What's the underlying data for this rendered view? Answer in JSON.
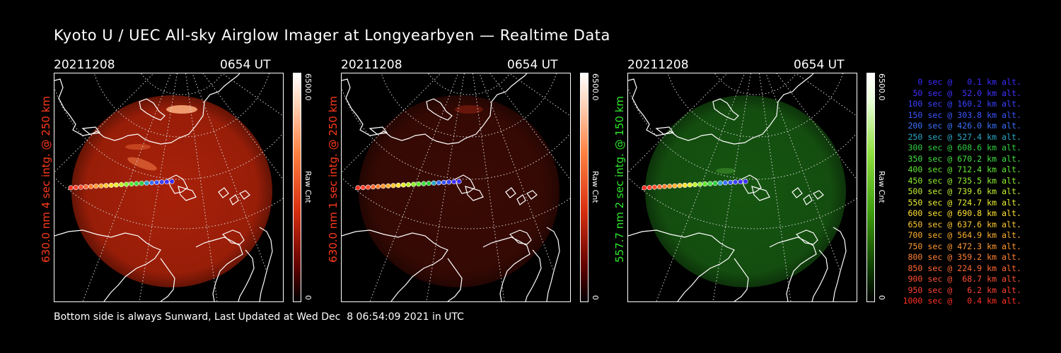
{
  "title": "Kyoto U / UEC All-sky Airglow Imager at Longyearbyen — Realtime Data",
  "panels": [
    {
      "date": "20211208",
      "time": "0654 UT",
      "ylabel": "630.0 nm 4 sec intg. @ 250 km",
      "label_color": "#ff3a1a",
      "cbar_max": "6500.0",
      "cbar_min": "0",
      "cbar_unit": "Raw Cnt",
      "glow": "#d82a0c",
      "glow_opacity": 0.78
    },
    {
      "date": "20211208",
      "time": "0654 UT",
      "ylabel": "630.0 nm 1 sec intg. @ 250 km",
      "label_color": "#ff3a1a",
      "cbar_max": "6500.0",
      "cbar_min": "0",
      "cbar_unit": "Raw Cnt",
      "glow": "#6a1208",
      "glow_opacity": 0.55
    },
    {
      "date": "20211208",
      "time": "0654 UT",
      "ylabel": "557.7 nm 2 sec intg. @ 150 km",
      "label_color": "#2ee82e",
      "cbar_max": "6500.0",
      "cbar_min": "0",
      "cbar_unit": "Raw Cnt",
      "glow": "#1f7a18",
      "glow_opacity": 0.7
    }
  ],
  "legend": [
    {
      "text": "0 sec @   0.1 km alt.",
      "color": "#3a2cff"
    },
    {
      "text": "50 sec @  52.0 km alt.",
      "color": "#4030ff"
    },
    {
      "text": "100 sec @ 160.2 km alt.",
      "color": "#3a40ff"
    },
    {
      "text": "150 sec @ 303.8 km alt.",
      "color": "#3a55ff"
    },
    {
      "text": "200 sec @ 426.0 km alt.",
      "color": "#3a70ff"
    },
    {
      "text": "250 sec @ 527.4 km alt.",
      "color": "#2aa8c8"
    },
    {
      "text": "300 sec @ 608.6 km alt.",
      "color": "#30d040"
    },
    {
      "text": "350 sec @ 670.2 km alt.",
      "color": "#40e040"
    },
    {
      "text": "400 sec @ 712.4 km alt.",
      "color": "#60e830"
    },
    {
      "text": "450 sec @ 735.5 km alt.",
      "color": "#90f030"
    },
    {
      "text": "500 sec @ 739.6 km alt.",
      "color": "#c0f030"
    },
    {
      "text": "550 sec @ 724.7 km alt.",
      "color": "#e8f030"
    },
    {
      "text": "600 sec @ 690.8 km alt.",
      "color": "#ffe030"
    },
    {
      "text": "650 sec @ 637.6 km alt.",
      "color": "#ffc830"
    },
    {
      "text": "700 sec @ 564.9 km alt.",
      "color": "#ffb030"
    },
    {
      "text": "750 sec @ 472.3 km alt.",
      "color": "#ff9830"
    },
    {
      "text": "800 sec @ 359.2 km alt.",
      "color": "#ff8030"
    },
    {
      "text": "850 sec @ 224.9 km alt.",
      "color": "#ff6830"
    },
    {
      "text": "900 sec @  68.7 km alt.",
      "color": "#ff5030"
    },
    {
      "text": "950 sec @   6.2 km alt.",
      "color": "#ff4030"
    },
    {
      "text": "1000 sec @   0.4 km alt.",
      "color": "#ff3020"
    }
  ],
  "footer": "Bottom side is always Sunward, Last Updated at Wed Dec  8 06:54:09 2021 in UTC"
}
